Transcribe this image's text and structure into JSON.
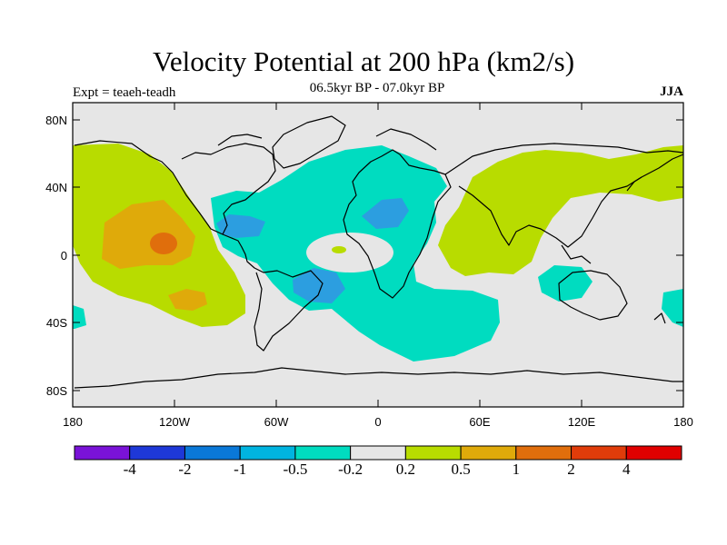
{
  "header": {
    "title": "Velocity Potential at 200 hPa (km2/s)",
    "subtitle": "06.5kyr BP - 07.0kyr BP",
    "left_label": "Expt = teaeh-teadh",
    "right_label": "JJA"
  },
  "axes": {
    "lat_ticks": [
      "80N",
      "40N",
      "0",
      "40S",
      "80S"
    ],
    "lon_ticks": [
      "180",
      "120W",
      "60W",
      "0",
      "60E",
      "120E",
      "180"
    ]
  },
  "colors": {
    "background": "#e6e6e6",
    "very_neg": "#2c9ee0",
    "neg": "#00dcc0",
    "pos": "#b8dc00",
    "more_pos": "#dfaa0a",
    "very_pos": "#e06e0c"
  },
  "colorbar": {
    "colors": [
      "#7a12d8",
      "#1e38d8",
      "#0a78d8",
      "#00b4e0",
      "#00dcc0",
      "#e6e6e6",
      "#b8dc00",
      "#dfaa0a",
      "#e06e0c",
      "#e03c0a",
      "#e00000"
    ],
    "labels": [
      "-4",
      "-2",
      "-1",
      "-0.5",
      "-0.2",
      "0.2",
      "0.5",
      "1",
      "2",
      "4"
    ]
  }
}
